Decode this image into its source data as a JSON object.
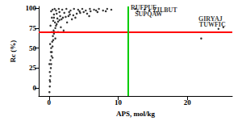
{
  "chart_data": {
    "type": "scatter",
    "x_label": "APS, mol/kg",
    "y_label": "Rc (%)",
    "color": "#000000",
    "marker": "circle",
    "x": [
      0.05,
      0.1,
      0.15,
      0.2,
      0.1,
      0.25,
      0.3,
      0.2,
      0.35,
      0.4,
      0.3,
      0.5,
      0.45,
      0.6,
      0.55,
      0.7,
      0.8,
      0.65,
      0.9,
      1.0,
      1.1,
      0.85,
      1.3,
      1.5,
      1.2,
      1.8,
      2.0,
      1.6,
      2.4,
      2.8,
      3.0,
      3.5,
      4.0,
      2.2,
      4.5,
      5.0,
      5.5,
      6.0,
      7.0,
      0.3,
      0.5,
      0.8,
      1.0,
      1.4,
      1.9,
      2.5,
      3.1,
      3.6,
      4.2,
      4.8,
      5.3,
      5.9,
      6.5,
      7.2,
      7.8,
      8.4,
      9.0,
      8.2,
      0.4,
      0.7,
      1.1,
      0.2,
      0.6,
      1.7,
      2.6,
      3.3,
      0.9,
      1.3,
      0.35,
      2.1,
      3.8,
      5.8,
      0.15,
      0.25,
      0.05,
      0.1,
      0.5,
      0.7,
      1.5,
      2.9,
      4.4,
      6.8,
      12.5,
      13.8,
      14.5,
      12.8,
      22.0,
      24.5,
      25.2
    ],
    "values": [
      -5,
      2,
      8,
      15,
      20,
      25,
      30,
      35,
      40,
      45,
      50,
      52,
      58,
      60,
      65,
      68,
      70,
      72,
      75,
      78,
      80,
      82,
      83,
      85,
      87,
      86,
      88,
      90,
      89,
      90,
      92,
      91,
      93,
      94,
      94,
      95,
      93,
      96,
      95,
      96,
      98,
      99,
      97,
      99,
      98,
      99,
      97,
      99,
      98,
      99,
      97,
      99,
      98,
      99,
      97,
      99,
      98,
      96,
      88,
      92,
      93,
      78,
      84,
      76,
      82,
      86,
      62,
      70,
      70,
      72,
      88,
      90,
      55,
      45,
      30,
      10,
      38,
      88,
      95,
      95,
      96,
      97,
      99,
      98,
      97,
      96,
      62,
      74,
      76
    ],
    "xlim": [
      -1.5,
      26.5
    ],
    "xticks": [
      0,
      10,
      20
    ],
    "ylim": [
      -10,
      102
    ],
    "yticks": [
      0,
      25,
      50,
      75,
      100
    ],
    "grid": false,
    "hline": {
      "value": 70,
      "color": "#ff0000"
    },
    "vline": {
      "value": 11.4,
      "color": "#00cc00"
    },
    "annotations": [
      {
        "text": "RUFPUF",
        "x": 11.8,
        "y": 100
      },
      {
        "text": "ZILBUT",
        "x": 15.0,
        "y": 97
      },
      {
        "text": "SUPQAW",
        "x": 12.4,
        "y": 92
      },
      {
        "text": "GIRYAJ",
        "x": 21.6,
        "y": 86
      },
      {
        "text": "TUWFIC",
        "x": 21.7,
        "y": 79
      }
    ]
  }
}
